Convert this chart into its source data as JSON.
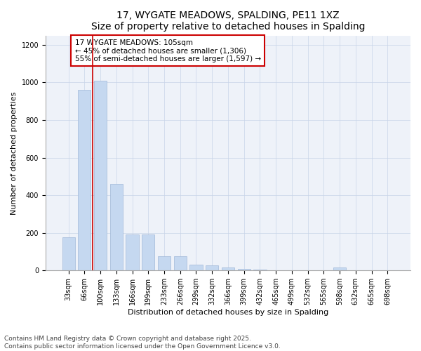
{
  "title": "17, WYGATE MEADOWS, SPALDING, PE11 1XZ",
  "subtitle": "Size of property relative to detached houses in Spalding",
  "xlabel": "Distribution of detached houses by size in Spalding",
  "ylabel": "Number of detached properties",
  "categories": [
    "33sqm",
    "66sqm",
    "100sqm",
    "133sqm",
    "166sqm",
    "199sqm",
    "233sqm",
    "266sqm",
    "299sqm",
    "332sqm",
    "366sqm",
    "399sqm",
    "432sqm",
    "465sqm",
    "499sqm",
    "532sqm",
    "565sqm",
    "598sqm",
    "632sqm",
    "665sqm",
    "698sqm"
  ],
  "values": [
    175,
    960,
    1010,
    460,
    190,
    190,
    75,
    75,
    30,
    28,
    15,
    10,
    5,
    0,
    0,
    0,
    0,
    15,
    0,
    0,
    0
  ],
  "bar_color": "#c5d8f0",
  "bar_edge_color": "#a0b8d8",
  "vline_x": 1.5,
  "vline_color": "#cc0000",
  "annotation_text_line1": "17 WYGATE MEADOWS: 105sqm",
  "annotation_text_line2": "← 45% of detached houses are smaller (1,306)",
  "annotation_text_line3": "55% of semi-detached houses are larger (1,597) →",
  "annotation_box_color": "#cc0000",
  "ylim": [
    0,
    1250
  ],
  "yticks": [
    0,
    200,
    400,
    600,
    800,
    1000,
    1200
  ],
  "footnote1": "Contains HM Land Registry data © Crown copyright and database right 2025.",
  "footnote2": "Contains public sector information licensed under the Open Government Licence v3.0.",
  "title_fontsize": 10,
  "subtitle_fontsize": 9,
  "axis_fontsize": 8,
  "tick_fontsize": 7,
  "annotation_fontsize": 7.5,
  "footnote_fontsize": 6.5
}
